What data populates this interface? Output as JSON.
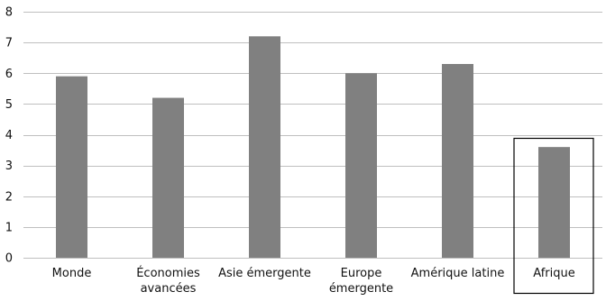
{
  "chart_data": {
    "type": "bar",
    "categories": [
      [
        "Monde"
      ],
      [
        "Économies",
        "avancées"
      ],
      [
        "Asie émergente"
      ],
      [
        "Europe",
        "émergente"
      ],
      [
        "Amérique latine"
      ],
      [
        "Afrique"
      ]
    ],
    "values": [
      5.9,
      5.2,
      7.2,
      6.0,
      6.3,
      3.6
    ],
    "ylim": [
      0,
      8
    ],
    "yticks": [
      "0",
      "1",
      "2",
      "3",
      "4",
      "5",
      "6",
      "7",
      "8"
    ],
    "grid": true,
    "highlighted_category": "Afrique",
    "colors": {
      "bar": "#808080",
      "grid": "#bfbfbf",
      "highlight_box": "#000000"
    }
  }
}
